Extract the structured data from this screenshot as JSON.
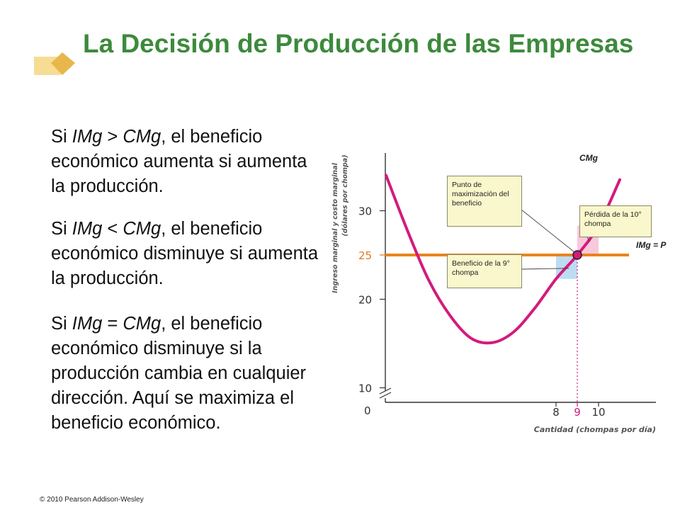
{
  "slide": {
    "title": "La Decisión de Producción de las Empresas",
    "copyright": "© 2010 Pearson Addison-Wesley",
    "bullets": [
      {
        "pre": "Si ",
        "t1": "IMg",
        "op": " > ",
        "t2": "CMg",
        "rest": ", el beneficio económico aumenta si aumenta la producción."
      },
      {
        "pre": "Si ",
        "t1": "IMg",
        "op": " < ",
        "t2": "CMg",
        "rest": ", el beneficio económico disminuye si aumenta la producción."
      },
      {
        "pre": "Si ",
        "t1": "IMg",
        "op": " = ",
        "t2": "CMg",
        "rest": ", el beneficio económico disminuye si la producción cambia en cualquier dirección. Aquí se maximiza el beneficio económico."
      }
    ]
  },
  "chart_data": {
    "type": "line",
    "xlabel": "Cantidad (chompas por día)",
    "ylabel": "Ingreso marginal y costo marginal",
    "ylabel2": "(dólares por chompa)",
    "y_ticks": [
      10,
      20,
      25,
      30
    ],
    "x_ticks": [
      8,
      9,
      10
    ],
    "origin_label": "0",
    "accent_colors": {
      "imcurve": "#e8841e",
      "cmgcurve": "#d41a7e",
      "profit_fill": "#bddcf2",
      "loss_fill": "#f8c8dc",
      "tick_25": "#e07a1c",
      "tick_9": "#d41a7e"
    },
    "series": [
      {
        "name": "CMg",
        "points": [
          [
            0,
            34
          ],
          [
            1,
            27.8
          ],
          [
            2,
            22.2
          ],
          [
            3,
            18.2
          ],
          [
            4,
            15.6
          ],
          [
            5,
            15.1
          ],
          [
            6,
            16.3
          ],
          [
            7,
            19.0
          ],
          [
            8,
            22.3
          ],
          [
            9,
            25
          ],
          [
            10,
            28.3
          ],
          [
            11,
            33.5
          ]
        ]
      },
      {
        "name": "IMg = P",
        "points": [
          [
            0,
            25
          ],
          [
            12,
            25
          ]
        ]
      }
    ],
    "shaded_regions": [
      {
        "label": "Beneficio de la 9° chompa",
        "x_from": 8,
        "x_to": 9,
        "y_low": 22.3,
        "y_high": 25
      },
      {
        "label": "Pérdida de la 10° chompa",
        "x_from": 9,
        "x_to": 10,
        "y_low": 25,
        "y_high": 28.3
      }
    ],
    "marker": {
      "x": 9,
      "y": 25,
      "label": "Punto de maximización del beneficio"
    },
    "annotations": {
      "cmg_label": "CMg",
      "img_label": "IMg = P",
      "max_point": "Punto de maximización del beneficio",
      "loss": "Pérdida de la 10° chompa",
      "profit": "Beneficio de la 9° chompa"
    }
  }
}
